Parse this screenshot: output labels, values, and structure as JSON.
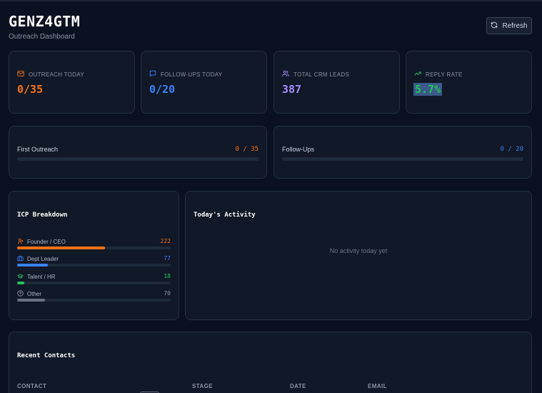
{
  "header": {
    "title": "GENZ4GTM",
    "subtitle": "Outreach Dashboard",
    "refresh_label": "Refresh"
  },
  "stats": [
    {
      "label": "OUTREACH TODAY",
      "value": "0/35",
      "icon": "mail-icon",
      "color": "#f97316"
    },
    {
      "label": "FOLLOW-UPS TODAY",
      "value": "0/20",
      "icon": "message-square-icon",
      "color": "#3b82f6"
    },
    {
      "label": "TOTAL CRM LEADS",
      "value": "387",
      "icon": "users-icon",
      "color": "#a78bfa"
    },
    {
      "label": "REPLY RATE",
      "value": "5.7%",
      "icon": "trending-up-icon",
      "color": "#22c55e"
    }
  ],
  "progress": [
    {
      "label": "First Outreach",
      "value": "0 / 35",
      "fraction": 0,
      "color": "#f97316"
    },
    {
      "label": "Follow-Ups",
      "value": "0 / 20",
      "fraction": 0,
      "color": "#3b82f6"
    }
  ],
  "icp": {
    "title": "ICP Breakdown",
    "max": 387,
    "rows": [
      {
        "label": "Founder / CEO",
        "count": "222",
        "value": 222,
        "icon": "user-icon",
        "color": "#f97316"
      },
      {
        "label": "Dept Leader",
        "count": "77",
        "value": 77,
        "icon": "briefcase-icon",
        "color": "#3b82f6"
      },
      {
        "label": "Talent / HR",
        "count": "18",
        "value": 18,
        "icon": "graduation-cap-icon",
        "color": "#22c55e"
      },
      {
        "label": "Other",
        "count": "70",
        "value": 70,
        "icon": "help-circle-icon",
        "color": "#6b7280"
      }
    ]
  },
  "activity": {
    "title": "Today's Activity",
    "empty_text": "No activity today yet"
  },
  "contacts": {
    "title": "Recent Contacts",
    "columns": [
      "CONTACT",
      "STAGE",
      "DATE",
      "EMAIL"
    ]
  }
}
